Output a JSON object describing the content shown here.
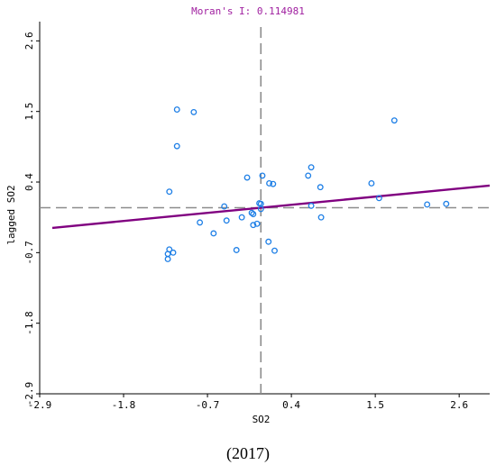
{
  "chart_data": {
    "type": "scatter",
    "title": "Moran's I: 0.114981",
    "xlabel": "SO2",
    "ylabel": "lagged SO2",
    "caption": "(2017)",
    "xlim": [
      -2.9,
      3.0
    ],
    "ylim": [
      -2.9,
      2.9
    ],
    "xticks": [
      -2.9,
      -1.8,
      -0.7,
      0.4,
      1.5,
      2.6
    ],
    "yticks": [
      -2.9,
      -1.8,
      -0.7,
      0.4,
      1.5,
      2.6
    ],
    "xtick_labels": [
      "-2.9",
      "-1.8",
      "-0.7",
      "0.4",
      "1.5",
      "2.6"
    ],
    "ytick_labels": [
      "-2.9",
      "-1.8",
      "-0.7",
      "0.4",
      "1.5",
      "2.6"
    ],
    "grid": false,
    "mean_lines": {
      "x": 0.0,
      "y": 0.0
    },
    "regression": {
      "slope": 0.114981,
      "intercept": 0.0,
      "color": "#800080"
    },
    "marker_color": "#1e7fe6",
    "points": [
      {
        "x": -1.1,
        "y": 1.53
      },
      {
        "x": -0.88,
        "y": 1.49
      },
      {
        "x": -1.1,
        "y": 0.96
      },
      {
        "x": -1.2,
        "y": 0.25
      },
      {
        "x": -1.2,
        "y": -0.65
      },
      {
        "x": -1.22,
        "y": -0.72
      },
      {
        "x": -1.15,
        "y": -0.7
      },
      {
        "x": -1.22,
        "y": -0.8
      },
      {
        "x": -0.8,
        "y": -0.23
      },
      {
        "x": -0.62,
        "y": -0.4
      },
      {
        "x": -0.45,
        "y": -0.2
      },
      {
        "x": -0.48,
        "y": 0.02
      },
      {
        "x": -0.25,
        "y": -0.15
      },
      {
        "x": -0.18,
        "y": 0.47
      },
      {
        "x": -0.12,
        "y": -0.08
      },
      {
        "x": -0.1,
        "y": -0.1
      },
      {
        "x": -0.1,
        "y": -0.27
      },
      {
        "x": -0.05,
        "y": -0.25
      },
      {
        "x": -0.02,
        "y": 0.07
      },
      {
        "x": -0.32,
        "y": -0.66
      },
      {
        "x": 0.0,
        "y": 0.06
      },
      {
        "x": 0.0,
        "y": -0.02
      },
      {
        "x": 0.02,
        "y": 0.5
      },
      {
        "x": 0.11,
        "y": 0.38
      },
      {
        "x": 0.16,
        "y": 0.37
      },
      {
        "x": 0.1,
        "y": -0.53
      },
      {
        "x": 0.18,
        "y": -0.67
      },
      {
        "x": 0.62,
        "y": 0.5
      },
      {
        "x": 0.66,
        "y": 0.63
      },
      {
        "x": 0.66,
        "y": 0.03
      },
      {
        "x": 0.78,
        "y": 0.32
      },
      {
        "x": 0.79,
        "y": -0.15
      },
      {
        "x": 1.45,
        "y": 0.38
      },
      {
        "x": 1.55,
        "y": 0.15
      },
      {
        "x": 1.75,
        "y": 1.36
      },
      {
        "x": 2.18,
        "y": 0.05
      },
      {
        "x": 2.43,
        "y": 0.06
      }
    ]
  }
}
